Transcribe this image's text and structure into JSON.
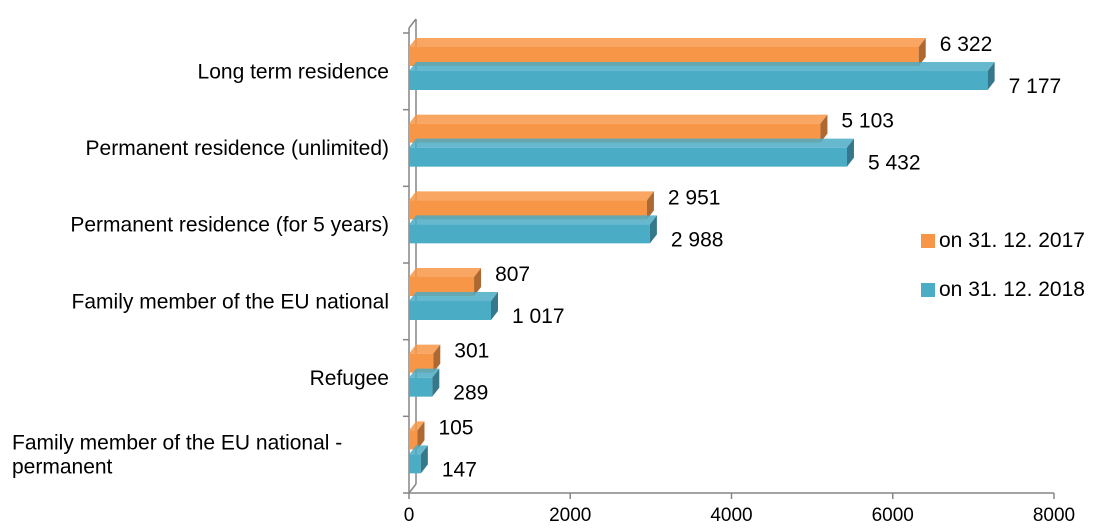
{
  "chart_data": {
    "type": "bar",
    "orientation": "horizontal",
    "categories": [
      "Long term residence",
      "Permanent residence (unlimited)",
      "Permanent residence (for 5 years)",
      "Family member of the EU national ",
      "Refugee",
      "Family member of the EU national - permanent"
    ],
    "series": [
      {
        "name": "on 31. 12. 2017",
        "color": "#F79646",
        "values": [
          6322,
          5103,
          2951,
          807,
          301,
          105
        ],
        "labels": [
          "6 322",
          "5 103",
          "2 951",
          "807",
          "301",
          "105"
        ]
      },
      {
        "name": "on 31. 12. 2018",
        "color": "#4BACC6",
        "values": [
          7177,
          5432,
          2988,
          1017,
          289,
          147
        ],
        "labels": [
          "7 177",
          "5 432",
          "2 988",
          "1 017",
          "289",
          "147"
        ]
      }
    ],
    "xlim": [
      0,
      8000
    ],
    "xticks": [
      "0",
      "2000",
      "4000",
      "6000",
      "8000"
    ],
    "legend_position": "right",
    "grid": false,
    "style": "3d"
  }
}
